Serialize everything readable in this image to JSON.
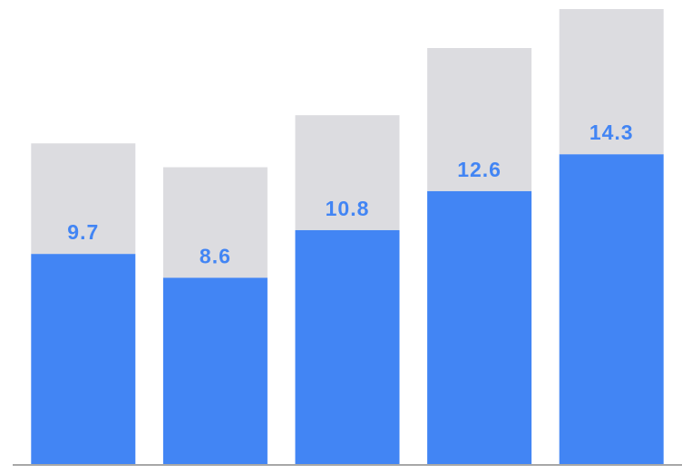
{
  "chart_data": {
    "type": "stacked_bar",
    "series": [
      {
        "color": "#4285f4",
        "values": [
          9.7,
          8.6,
          10.8,
          12.6,
          14.3
        ],
        "labels": true
      },
      {
        "color": "#dcdce0",
        "values": [
          5.1,
          5.1,
          5.3,
          6.6,
          6.7
        ],
        "labels": false
      }
    ],
    "label_color": "#4285f4",
    "baseline_color": "#8a8a8a"
  }
}
